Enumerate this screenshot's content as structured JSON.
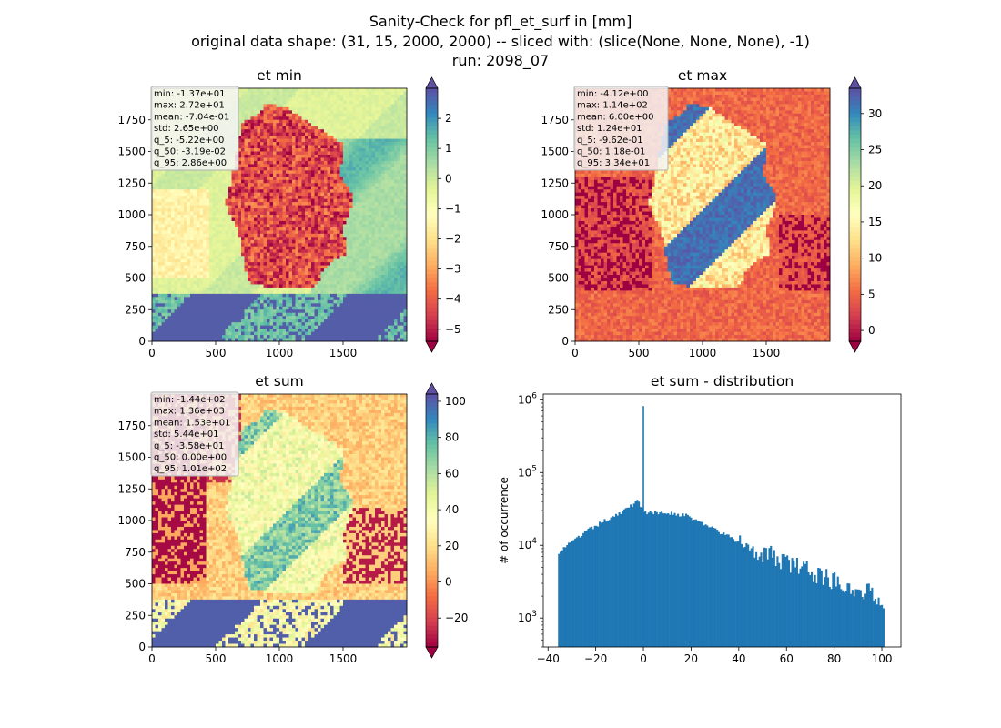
{
  "figure": {
    "title_lines": [
      "Sanity-Check for pfl_et_surf in [mm]",
      "original data shape: (31, 15, 2000, 2000) -- sliced with: (slice(None, None, None), -1)",
      "run: 2098_07"
    ]
  },
  "colors": {
    "hist_bar": "#1f77b4",
    "stats_box_bg": "#f5f5f5",
    "map_background": "#fefebe"
  },
  "chart_data": [
    {
      "type": "heatmap",
      "title": "et min",
      "colormap": "Spectral",
      "colorbar_extend": "both",
      "x_range": [
        0,
        2000
      ],
      "y_range": [
        0,
        2000
      ],
      "x_ticks": [
        0,
        500,
        1000,
        1500
      ],
      "y_ticks": [
        0,
        250,
        500,
        750,
        1000,
        1250,
        1500,
        1750
      ],
      "color_range": [
        -5.4,
        3.0
      ],
      "colorbar_ticks": [
        2,
        1,
        0,
        -1,
        -2,
        -3,
        -4,
        -5
      ],
      "colorbar_ticklabels": [
        "2",
        "1",
        "0",
        "−1",
        "−2",
        "−3",
        "−4",
        "−5"
      ],
      "stats": [
        "min: -1.37e+01",
        "max: 2.72e+01",
        "mean: -7.04e-01",
        "std: 2.65e+00",
        "q_5: -5.22e+00",
        "q_50: -3.19e-02",
        "q_95: 2.86e+00"
      ]
    },
    {
      "type": "heatmap",
      "title": "et max",
      "colormap": "Spectral",
      "colorbar_extend": "both",
      "x_range": [
        0,
        2000
      ],
      "y_range": [
        0,
        2000
      ],
      "x_ticks": [
        0,
        500,
        1000,
        1500
      ],
      "y_ticks": [
        0,
        250,
        500,
        750,
        1000,
        1250,
        1500,
        1750
      ],
      "color_range": [
        -1.5,
        33.5
      ],
      "colorbar_ticks": [
        30,
        25,
        20,
        15,
        10,
        5,
        0
      ],
      "colorbar_ticklabels": [
        "30",
        "25",
        "20",
        "15",
        "10",
        "5",
        "0"
      ],
      "stats": [
        "min: -4.12e+00",
        "max: 1.14e+02",
        "mean: 6.00e+00",
        "std: 1.24e+01",
        "q_5: -9.62e-01",
        "q_50: 1.18e-01",
        "q_95: 3.34e+01"
      ]
    },
    {
      "type": "heatmap",
      "title": "et sum",
      "colormap": "Spectral",
      "colorbar_extend": "both",
      "x_range": [
        0,
        2000
      ],
      "y_range": [
        0,
        2000
      ],
      "x_ticks": [
        0,
        500,
        1000,
        1500
      ],
      "y_ticks": [
        0,
        250,
        500,
        750,
        1000,
        1250,
        1500,
        1750
      ],
      "color_range": [
        -36,
        104
      ],
      "colorbar_ticks": [
        100,
        80,
        60,
        40,
        20,
        0,
        -20
      ],
      "colorbar_ticklabels": [
        "100",
        "80",
        "60",
        "40",
        "20",
        "0",
        "−20"
      ],
      "stats": [
        "min: -1.44e+02",
        "max: 1.36e+03",
        "mean: 1.53e+01",
        "std: 5.44e+01",
        "q_5: -3.58e+01",
        "q_50: 0.00e+00",
        "q_95: 1.01e+02"
      ]
    },
    {
      "type": "bar",
      "title": "et sum - distribution",
      "ylabel": "# of occurrence",
      "xlabel": "",
      "y_scale": "log",
      "x_range": [
        -42,
        108
      ],
      "y_range": [
        400,
        1200000
      ],
      "x_ticks": [
        -40,
        -20,
        0,
        20,
        40,
        60,
        80,
        100
      ],
      "x_ticklabels": [
        "−40",
        "−20",
        "0",
        "20",
        "40",
        "60",
        "80",
        "100"
      ],
      "y_ticks": [
        1000,
        10000,
        100000,
        1000000
      ],
      "y_ticklabels": [
        "10^3",
        "10^4",
        "10^5",
        "10^6"
      ],
      "bin_range": [
        -35.8,
        101
      ],
      "bin_count": 200,
      "spike": {
        "x": 0,
        "count": 820000
      },
      "profile_points": [
        [
          -35.8,
          8000
        ],
        [
          -33,
          9500
        ],
        [
          -30,
          11000
        ],
        [
          -27,
          13000
        ],
        [
          -24,
          15500
        ],
        [
          -21,
          17500
        ],
        [
          -18,
          20000
        ],
        [
          -15,
          23000
        ],
        [
          -12,
          26000
        ],
        [
          -9,
          29000
        ],
        [
          -6,
          33000
        ],
        [
          -4,
          37000
        ],
        [
          -3,
          45000
        ],
        [
          -2,
          40000
        ],
        [
          -1,
          34000
        ],
        [
          0,
          30000
        ],
        [
          2,
          28000
        ],
        [
          5,
          27500
        ],
        [
          8,
          28500
        ],
        [
          11,
          28000
        ],
        [
          14,
          27000
        ],
        [
          17,
          26000
        ],
        [
          20,
          24000
        ],
        [
          25,
          20000
        ],
        [
          30,
          16500
        ],
        [
          35,
          13500
        ],
        [
          40,
          11000
        ],
        [
          45,
          9500
        ],
        [
          50,
          8000
        ],
        [
          55,
          6800
        ],
        [
          60,
          5800
        ],
        [
          65,
          5000
        ],
        [
          70,
          4300
        ],
        [
          75,
          3800
        ],
        [
          80,
          3300
        ],
        [
          85,
          2900
        ],
        [
          90,
          2500
        ],
        [
          95,
          2200
        ],
        [
          98,
          2000
        ],
        [
          100.5,
          1800
        ]
      ]
    }
  ]
}
